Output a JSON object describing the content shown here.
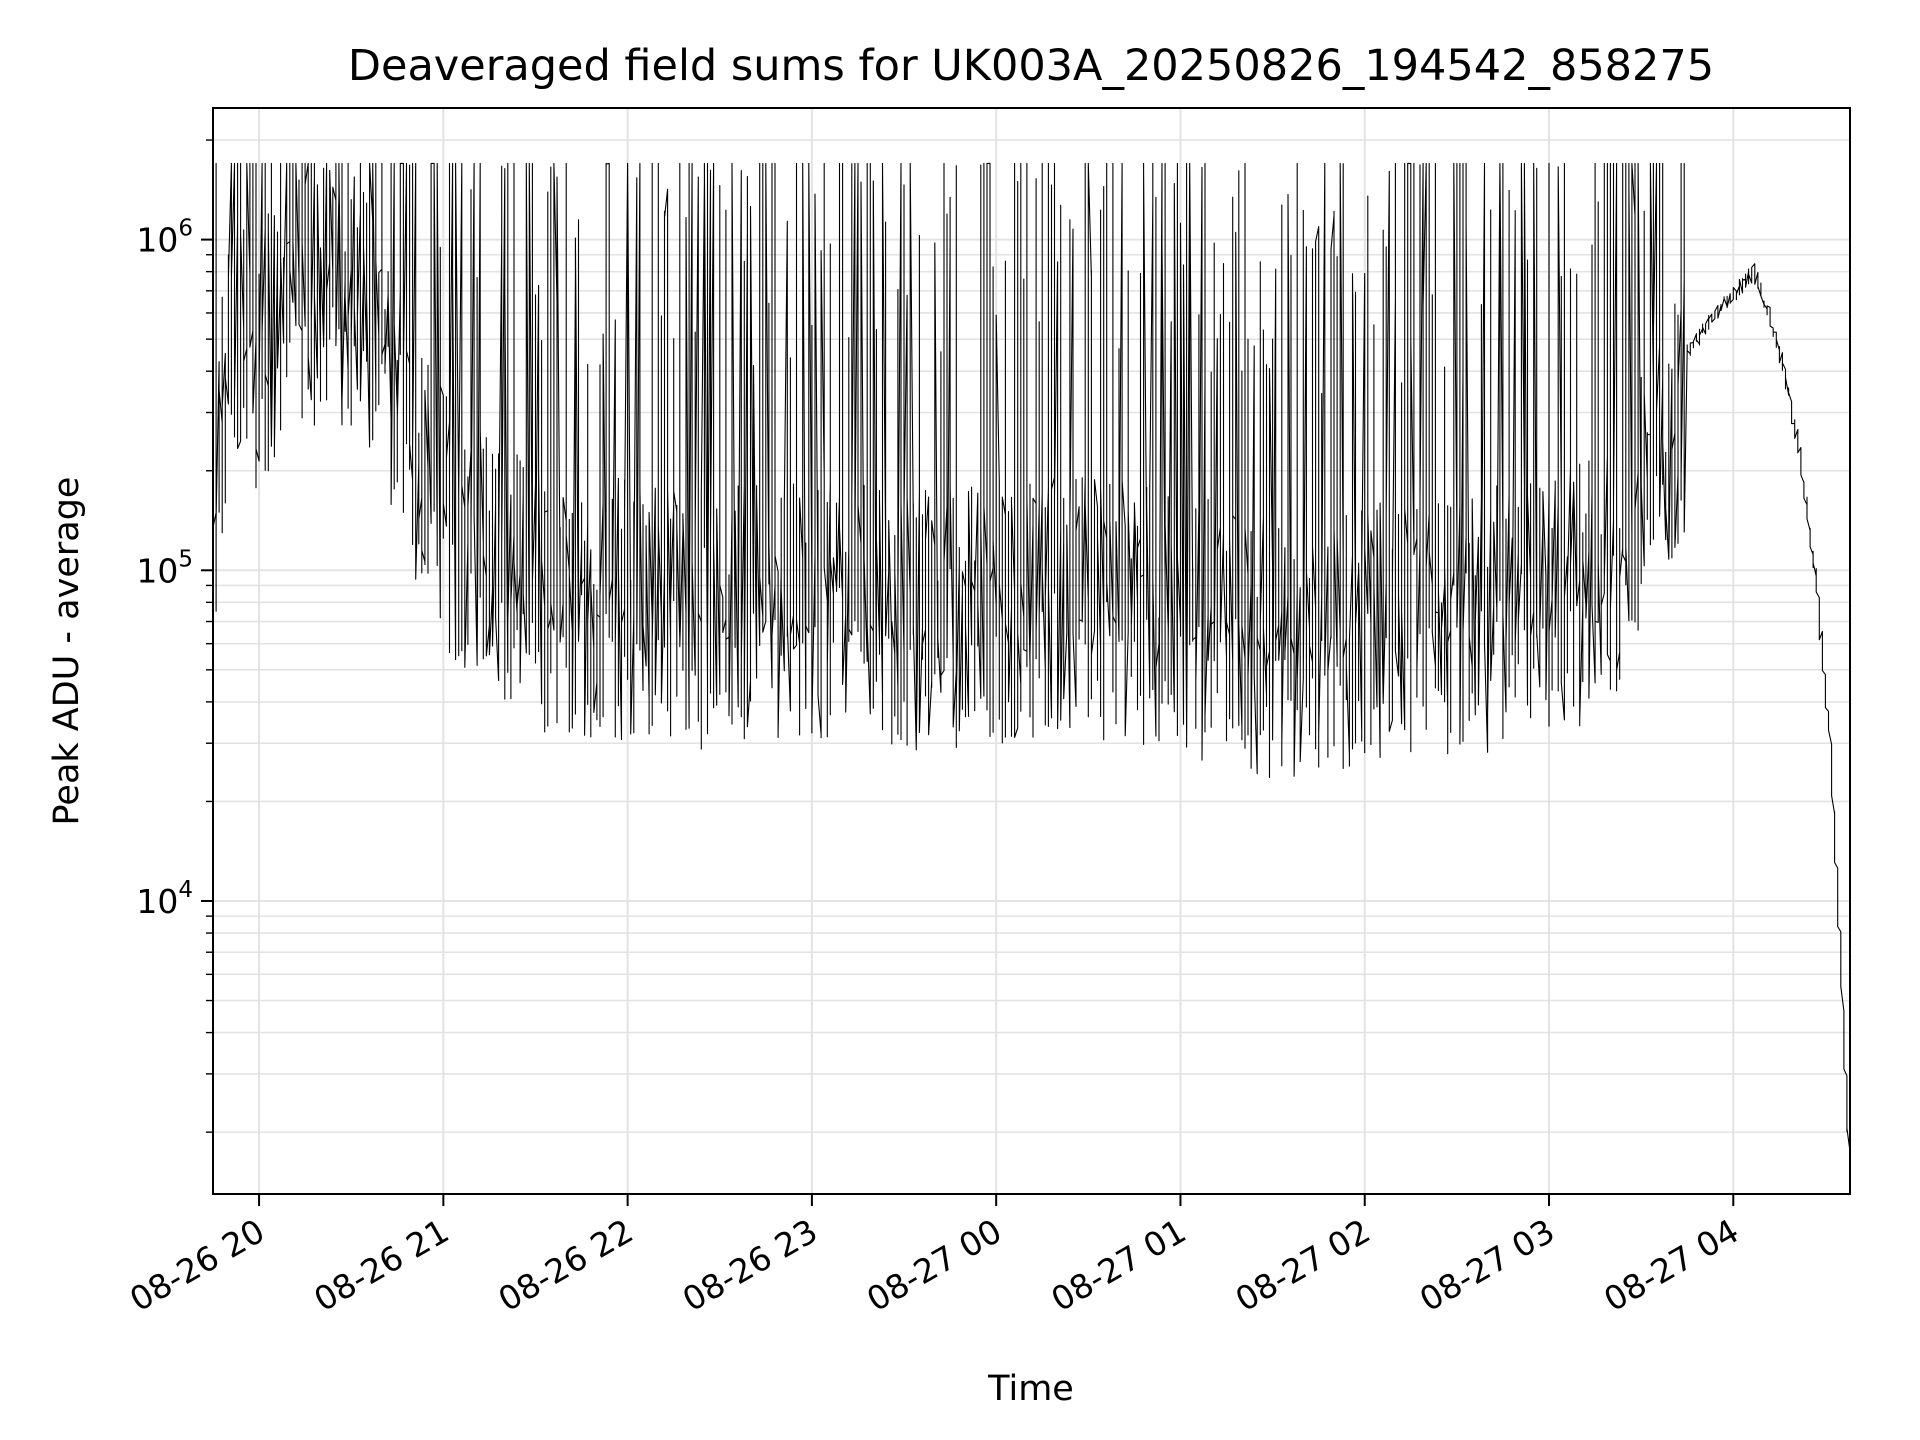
{
  "chart_data": {
    "type": "line",
    "title": "Deaveraged field sums for UK003A_20250826_194542_858275",
    "xlabel": "Time",
    "ylabel": "Peak ADU - average",
    "yscale": "log",
    "ylim": [
      1300,
      2500000
    ],
    "xlim": [
      "2025-08-26 19:45",
      "2025-08-27 04:38"
    ],
    "grid": true,
    "line_color": "#000000",
    "grid_color": "#e3e3e3",
    "x_ticks": [
      {
        "label": "08-26 20",
        "time": "2025-08-26 20:00"
      },
      {
        "label": "08-26 21",
        "time": "2025-08-26 21:00"
      },
      {
        "label": "08-26 22",
        "time": "2025-08-26 22:00"
      },
      {
        "label": "08-26 23",
        "time": "2025-08-26 23:00"
      },
      {
        "label": "08-27 00",
        "time": "2025-08-27 00:00"
      },
      {
        "label": "08-27 01",
        "time": "2025-08-27 01:00"
      },
      {
        "label": "08-27 02",
        "time": "2025-08-27 02:00"
      },
      {
        "label": "08-27 03",
        "time": "2025-08-27 03:00"
      },
      {
        "label": "08-27 04",
        "time": "2025-08-27 04:00"
      }
    ],
    "y_ticks": [
      {
        "value": 10000,
        "base": "10",
        "exp": "4"
      },
      {
        "value": 100000,
        "base": "10",
        "exp": "5"
      },
      {
        "value": 1000000,
        "base": "10",
        "exp": "6"
      }
    ],
    "series": [
      {
        "points": [
          [
            "2025-08-26 19:45",
            140000
          ],
          [
            "2025-08-26 19:49",
            500000
          ],
          [
            "2025-08-26 19:53",
            750000
          ],
          [
            "2025-08-26 19:58",
            600000
          ],
          [
            "2025-08-26 20:05",
            700000
          ],
          [
            "2025-08-26 20:15",
            900000
          ],
          [
            "2025-08-26 20:25",
            1000000
          ],
          [
            "2025-08-26 20:35",
            800000
          ],
          [
            "2025-08-26 20:45",
            450000
          ],
          [
            "2025-08-26 20:55",
            250000
          ],
          [
            "2025-08-26 21:05",
            180000
          ],
          [
            "2025-08-26 21:15",
            150000
          ],
          [
            "2025-08-26 21:30",
            120000
          ],
          [
            "2025-08-26 21:45",
            100000
          ],
          [
            "2025-08-26 22:00",
            110000
          ],
          [
            "2025-08-26 22:30",
            100000
          ],
          [
            "2025-08-26 23:00",
            110000
          ],
          [
            "2025-08-26 23:30",
            100000
          ],
          [
            "2025-08-27 00:00",
            105000
          ],
          [
            "2025-08-27 00:30",
            110000
          ],
          [
            "2025-08-27 01:00",
            100000
          ],
          [
            "2025-08-27 01:30",
            80000
          ],
          [
            "2025-08-27 02:00",
            90000
          ],
          [
            "2025-08-27 02:30",
            95000
          ],
          [
            "2025-08-27 03:00",
            110000
          ],
          [
            "2025-08-27 03:20",
            130000
          ],
          [
            "2025-08-27 03:35",
            300000
          ],
          [
            "2025-08-27 03:45",
            450000
          ],
          [
            "2025-08-27 03:55",
            600000
          ],
          [
            "2025-08-27 04:02",
            700000
          ],
          [
            "2025-08-27 04:07",
            800000
          ],
          [
            "2025-08-27 04:12",
            600000
          ],
          [
            "2025-08-27 04:17",
            400000
          ],
          [
            "2025-08-27 04:22",
            230000
          ],
          [
            "2025-08-27 04:27",
            100000
          ],
          [
            "2025-08-27 04:32",
            30000
          ],
          [
            "2025-08-27 04:35",
            8000
          ],
          [
            "2025-08-27 04:38",
            1800
          ]
        ]
      }
    ]
  }
}
